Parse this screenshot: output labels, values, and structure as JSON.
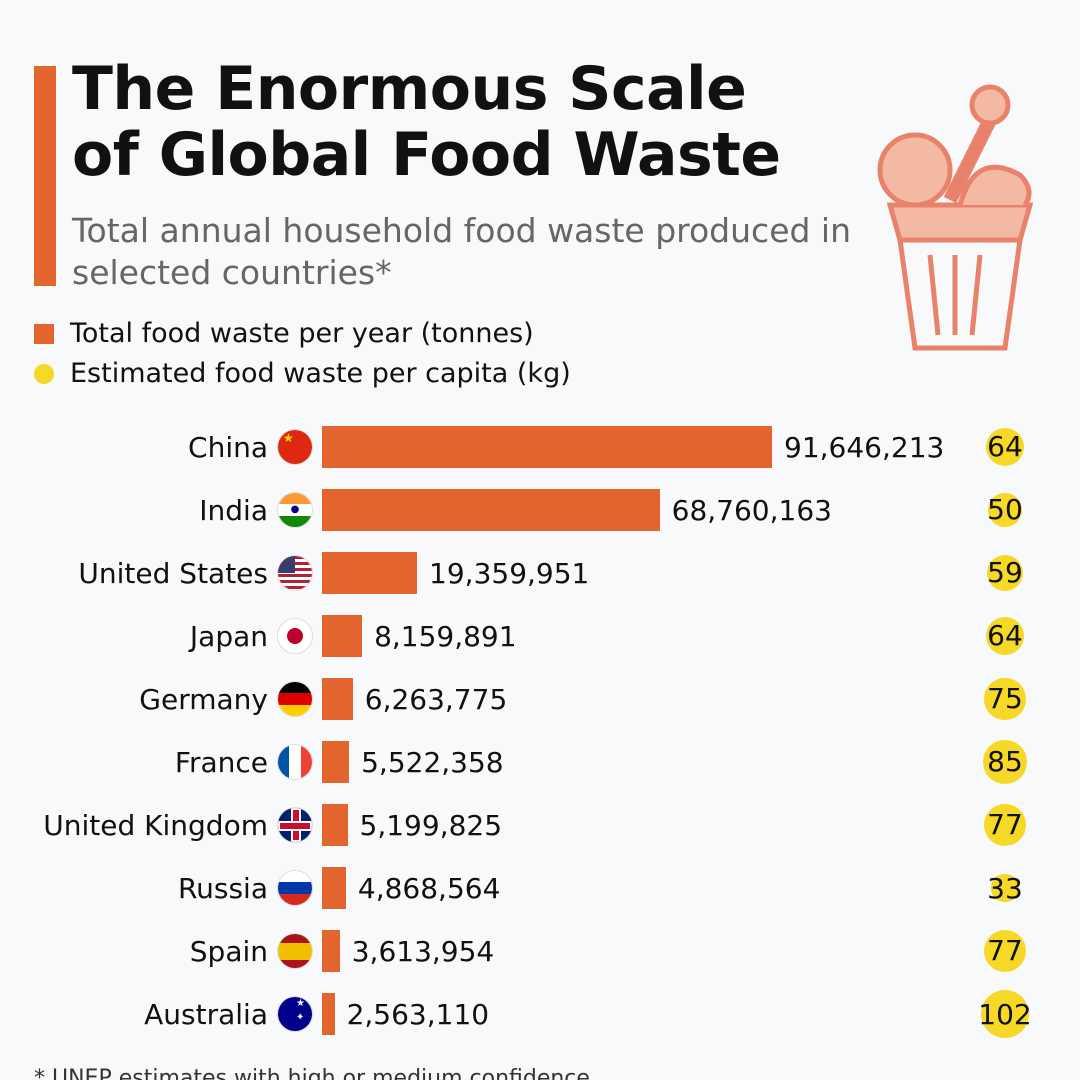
{
  "title": "The Enormous Scale of Global Food Waste",
  "subtitle": "Total annual household food waste produced in selected countries*",
  "footnote": "* UNEP estimates with high or medium confidence",
  "chart_data": {
    "type": "bar",
    "legend": [
      {
        "label": "Total food waste per year (tonnes)",
        "color": "#e2652e"
      },
      {
        "label": "Estimated food waste per capita (kg)",
        "color": "#f6d827"
      }
    ],
    "categories": [
      "China",
      "India",
      "United States",
      "Japan",
      "Germany",
      "France",
      "United Kingdom",
      "Russia",
      "Spain",
      "Australia"
    ],
    "series": [
      {
        "name": "Total food waste per year (tonnes)",
        "values": [
          91646213,
          68760163,
          19359951,
          8159891,
          6263775,
          5522358,
          5199825,
          4868564,
          3613954,
          2563110
        ],
        "labels": [
          "91,646,213",
          "68,760,163",
          "19,359,951",
          "8,159,891",
          "6,263,775",
          "5,522,358",
          "5,199,825",
          "4,868,564",
          "3,613,954",
          "2,563,110"
        ]
      },
      {
        "name": "Estimated food waste per capita (kg)",
        "values": [
          64,
          50,
          59,
          64,
          75,
          85,
          77,
          33,
          77,
          102
        ]
      }
    ]
  }
}
